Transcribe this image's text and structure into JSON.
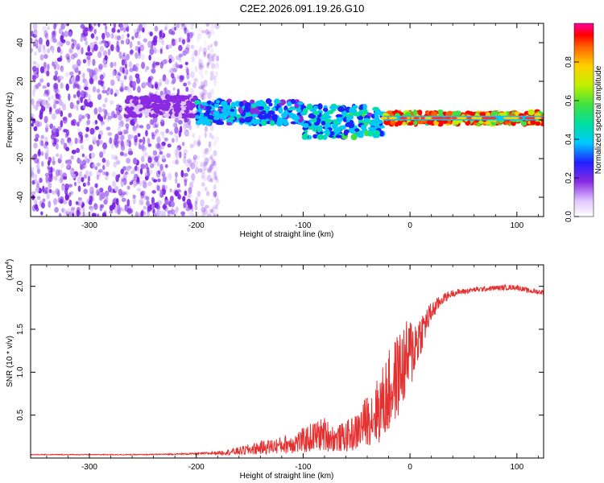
{
  "title": "C2E2.2026.091.19.26.G10",
  "chart_data": [
    {
      "type": "heatmap",
      "name": "spectrogram",
      "xlabel": "Height of straight line (km)",
      "ylabel": "Frequency (Hz)",
      "xlim": [
        -355,
        125
      ],
      "ylim": [
        -50,
        50
      ],
      "x_ticks": [
        -300,
        -200,
        -100,
        0,
        100
      ],
      "x_tick_labels": [
        "-300",
        "-200",
        "-100",
        "0",
        "100"
      ],
      "y_ticks": [
        -40,
        -20,
        0,
        20,
        40
      ],
      "y_tick_labels": [
        "-40",
        "-20",
        "0",
        "20",
        "40"
      ],
      "colorbar": {
        "label": "Normalized spectral amplitude",
        "range": [
          0,
          1
        ],
        "ticks": [
          0.0,
          0.2,
          0.4,
          0.6,
          0.8
        ],
        "tick_labels": [
          "0.0",
          "0.2",
          "0.4",
          "0.6",
          "0.8"
        ]
      },
      "regions": [
        {
          "desc": "noise",
          "x_range": [
            -355,
            -180
          ],
          "freq_range": [
            -50,
            50
          ],
          "amplitude": 0.1
        },
        {
          "desc": "signal track",
          "x_range": [
            -265,
            -200
          ],
          "freq_center": 7,
          "freq_spread": 5,
          "amplitude": 0.18
        },
        {
          "desc": "signal track",
          "x_range": [
            -200,
            -100
          ],
          "freq_center": 4,
          "freq_spread": 6,
          "amplitude": 0.35
        },
        {
          "desc": "signal track",
          "x_range": [
            -100,
            -25
          ],
          "freq_center": -1,
          "freq_spread": 8,
          "amplitude": 0.4
        },
        {
          "desc": "signal track",
          "x_range": [
            -25,
            125
          ],
          "freq_center": 1,
          "freq_spread": 3,
          "amplitude": 0.9
        }
      ]
    },
    {
      "type": "line",
      "name": "snr",
      "xlabel": "Height of straight line (km)",
      "ylabel": "SNR (10 * v/v)",
      "y_multiplier": "(x10",
      "y_multiplier_exp": "4",
      "y_multiplier_close": ")",
      "xlim": [
        -355,
        125
      ],
      "ylim": [
        0,
        2.25
      ],
      "x_ticks": [
        -300,
        -200,
        -100,
        0,
        100
      ],
      "x_tick_labels": [
        "-300",
        "-200",
        "-100",
        "0",
        "100"
      ],
      "y_ticks": [
        0.5,
        1.0,
        1.5,
        2.0
      ],
      "y_tick_labels": [
        "0.5",
        "1.0",
        "1.5",
        "2.0"
      ],
      "series": [
        {
          "name": "SNR",
          "color": "#e53030",
          "x": [
            -355,
            -300,
            -250,
            -200,
            -180,
            -160,
            -140,
            -120,
            -100,
            -90,
            -80,
            -70,
            -60,
            -50,
            -40,
            -30,
            -20,
            -10,
            0,
            10,
            20,
            30,
            40,
            60,
            80,
            100,
            110,
            125
          ],
          "y": [
            0.04,
            0.04,
            0.04,
            0.05,
            0.06,
            0.08,
            0.12,
            0.15,
            0.2,
            0.25,
            0.28,
            0.22,
            0.25,
            0.3,
            0.45,
            0.55,
            0.75,
            1.0,
            1.2,
            1.45,
            1.7,
            1.85,
            1.92,
            1.96,
            1.98,
            1.99,
            1.95,
            1.93
          ],
          "noise": [
            0.005,
            0.005,
            0.005,
            0.01,
            0.02,
            0.05,
            0.08,
            0.1,
            0.15,
            0.18,
            0.2,
            0.15,
            0.18,
            0.22,
            0.3,
            0.4,
            0.5,
            0.5,
            0.45,
            0.25,
            0.12,
            0.06,
            0.04,
            0.03,
            0.03,
            0.03,
            0.03,
            0.03
          ]
        }
      ]
    }
  ]
}
